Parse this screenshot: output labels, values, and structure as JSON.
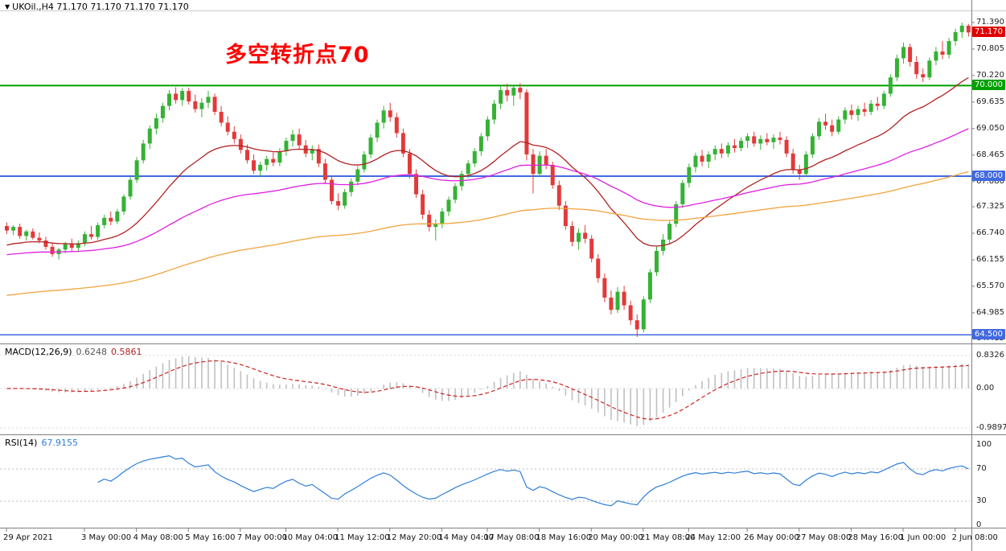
{
  "header": {
    "dropdown_icon": "▼",
    "symbol_info": "UKOil.,H4 71.170 71.170 71.170 71.170"
  },
  "annotation": {
    "text": "多空转折点70",
    "color": "#FF0000"
  },
  "colors": {
    "background": "#FFFFFF",
    "border": "#808080",
    "candle_up": "#35B235",
    "candle_down": "#E23A3A",
    "axis_text": "#222222"
  },
  "chart_data": {
    "type": "candlestick",
    "symbol": "UKOil.",
    "timeframe": "H4",
    "ohlc_order": [
      "open",
      "high",
      "low",
      "close"
    ],
    "candles": [
      [
        66.9,
        66.98,
        66.72,
        66.8
      ],
      [
        66.8,
        66.92,
        66.7,
        66.88
      ],
      [
        66.88,
        66.95,
        66.62,
        66.68
      ],
      [
        66.68,
        66.82,
        66.58,
        66.78
      ],
      [
        66.78,
        66.85,
        66.6,
        66.64
      ],
      [
        66.64,
        66.76,
        66.52,
        66.58
      ],
      [
        66.58,
        66.66,
        66.38,
        66.44
      ],
      [
        66.44,
        66.52,
        66.22,
        66.28
      ],
      [
        66.28,
        66.42,
        66.16,
        66.38
      ],
      [
        66.38,
        66.55,
        66.3,
        66.5
      ],
      [
        66.5,
        66.62,
        66.35,
        66.42
      ],
      [
        66.42,
        66.58,
        66.32,
        66.52
      ],
      [
        66.52,
        66.78,
        66.45,
        66.72
      ],
      [
        66.72,
        66.9,
        66.6,
        66.66
      ],
      [
        66.66,
        66.98,
        66.6,
        66.92
      ],
      [
        66.92,
        67.15,
        66.85,
        67.08
      ],
      [
        67.08,
        67.22,
        66.92,
        67.0
      ],
      [
        67.0,
        67.28,
        66.94,
        67.22
      ],
      [
        67.22,
        67.6,
        67.15,
        67.55
      ],
      [
        67.55,
        67.98,
        67.48,
        67.92
      ],
      [
        67.92,
        68.42,
        67.85,
        68.35
      ],
      [
        68.35,
        68.8,
        68.28,
        68.72
      ],
      [
        68.72,
        69.12,
        68.6,
        69.05
      ],
      [
        69.05,
        69.38,
        68.92,
        69.28
      ],
      [
        69.28,
        69.62,
        69.18,
        69.55
      ],
      [
        69.55,
        69.9,
        69.45,
        69.82
      ],
      [
        69.82,
        69.96,
        69.6,
        69.68
      ],
      [
        69.68,
        69.94,
        69.55,
        69.88
      ],
      [
        69.88,
        69.95,
        69.58,
        69.65
      ],
      [
        69.65,
        69.8,
        69.4,
        69.48
      ],
      [
        69.48,
        69.72,
        69.3,
        69.62
      ],
      [
        69.62,
        69.88,
        69.5,
        69.75
      ],
      [
        69.75,
        69.82,
        69.35,
        69.42
      ],
      [
        69.42,
        69.55,
        69.1,
        69.18
      ],
      [
        69.18,
        69.32,
        68.9,
        68.98
      ],
      [
        68.98,
        69.1,
        68.72,
        68.82
      ],
      [
        68.82,
        68.92,
        68.5,
        68.58
      ],
      [
        68.58,
        68.7,
        68.28,
        68.35
      ],
      [
        68.35,
        68.48,
        68.05,
        68.12
      ],
      [
        68.12,
        68.32,
        67.98,
        68.25
      ],
      [
        68.25,
        68.45,
        68.12,
        68.38
      ],
      [
        68.38,
        68.52,
        68.22,
        68.3
      ],
      [
        68.3,
        68.62,
        68.22,
        68.55
      ],
      [
        68.55,
        68.85,
        68.45,
        68.78
      ],
      [
        68.78,
        69.02,
        68.65,
        68.92
      ],
      [
        68.92,
        69.05,
        68.6,
        68.68
      ],
      [
        68.68,
        68.8,
        68.42,
        68.5
      ],
      [
        68.5,
        68.68,
        68.35,
        68.6
      ],
      [
        68.6,
        68.7,
        68.2,
        68.28
      ],
      [
        68.28,
        68.38,
        67.85,
        67.92
      ],
      [
        67.92,
        68.0,
        67.38,
        67.45
      ],
      [
        67.45,
        67.62,
        67.25,
        67.35
      ],
      [
        67.35,
        67.72,
        67.28,
        67.65
      ],
      [
        67.65,
        67.95,
        67.55,
        67.88
      ],
      [
        67.88,
        68.22,
        67.8,
        68.15
      ],
      [
        68.15,
        68.55,
        68.08,
        68.48
      ],
      [
        68.48,
        68.92,
        68.4,
        68.85
      ],
      [
        68.85,
        69.25,
        68.75,
        69.18
      ],
      [
        69.18,
        69.55,
        69.05,
        69.45
      ],
      [
        69.45,
        69.62,
        69.2,
        69.3
      ],
      [
        69.3,
        69.4,
        68.85,
        68.95
      ],
      [
        68.95,
        69.05,
        68.42,
        68.5
      ],
      [
        68.5,
        68.6,
        67.95,
        68.05
      ],
      [
        68.05,
        68.15,
        67.52,
        67.6
      ],
      [
        67.6,
        67.7,
        67.05,
        67.15
      ],
      [
        67.15,
        67.25,
        66.78,
        66.88
      ],
      [
        66.88,
        67.05,
        66.58,
        66.95
      ],
      [
        66.95,
        67.3,
        66.85,
        67.22
      ],
      [
        67.22,
        67.55,
        67.12,
        67.48
      ],
      [
        67.48,
        67.85,
        67.4,
        67.78
      ],
      [
        67.78,
        68.12,
        67.68,
        68.05
      ],
      [
        68.05,
        68.35,
        67.95,
        68.28
      ],
      [
        68.28,
        68.62,
        68.2,
        68.55
      ],
      [
        68.55,
        68.95,
        68.45,
        68.88
      ],
      [
        68.88,
        69.32,
        68.78,
        69.25
      ],
      [
        69.25,
        69.68,
        69.15,
        69.6
      ],
      [
        69.6,
        69.98,
        69.48,
        69.9
      ],
      [
        69.9,
        70.04,
        69.65,
        69.78
      ],
      [
        69.78,
        70.02,
        69.55,
        69.95
      ],
      [
        69.95,
        70.05,
        69.7,
        69.85
      ],
      [
        69.85,
        69.92,
        68.35,
        68.48
      ],
      [
        68.48,
        68.6,
        67.62,
        68.05
      ],
      [
        68.05,
        68.55,
        67.98,
        68.45
      ],
      [
        68.45,
        68.6,
        68.15,
        68.25
      ],
      [
        68.25,
        68.32,
        67.72,
        67.8
      ],
      [
        67.8,
        67.9,
        67.25,
        67.35
      ],
      [
        67.35,
        67.45,
        66.82,
        66.9
      ],
      [
        66.9,
        67.0,
        66.45,
        66.55
      ],
      [
        66.55,
        66.85,
        66.38,
        66.75
      ],
      [
        66.75,
        66.92,
        66.52,
        66.62
      ],
      [
        66.62,
        66.7,
        66.1,
        66.18
      ],
      [
        66.18,
        66.28,
        65.65,
        65.75
      ],
      [
        65.75,
        65.85,
        65.22,
        65.32
      ],
      [
        65.32,
        65.48,
        64.95,
        65.05
      ],
      [
        65.05,
        65.55,
        64.98,
        65.45
      ],
      [
        65.45,
        65.58,
        65.05,
        65.15
      ],
      [
        65.15,
        65.25,
        64.72,
        64.82
      ],
      [
        64.82,
        64.95,
        64.45,
        64.62
      ],
      [
        64.62,
        65.35,
        64.55,
        65.28
      ],
      [
        65.28,
        65.95,
        65.2,
        65.88
      ],
      [
        65.88,
        66.45,
        65.8,
        66.35
      ],
      [
        66.35,
        66.72,
        66.25,
        66.6
      ],
      [
        66.6,
        67.02,
        66.52,
        66.95
      ],
      [
        66.95,
        67.45,
        66.88,
        67.38
      ],
      [
        67.38,
        67.92,
        67.3,
        67.85
      ],
      [
        67.85,
        68.28,
        67.75,
        68.2
      ],
      [
        68.2,
        68.52,
        68.08,
        68.45
      ],
      [
        68.45,
        68.58,
        68.22,
        68.32
      ],
      [
        68.32,
        68.55,
        68.18,
        68.48
      ],
      [
        68.48,
        68.68,
        68.35,
        68.6
      ],
      [
        68.6,
        68.72,
        68.4,
        68.5
      ],
      [
        68.5,
        68.75,
        68.42,
        68.68
      ],
      [
        68.68,
        68.82,
        68.52,
        68.62
      ],
      [
        68.62,
        68.85,
        68.55,
        68.78
      ],
      [
        68.78,
        68.95,
        68.62,
        68.88
      ],
      [
        68.88,
        68.98,
        68.65,
        68.72
      ],
      [
        68.72,
        68.9,
        68.58,
        68.82
      ],
      [
        68.82,
        68.95,
        68.68,
        68.75
      ],
      [
        68.75,
        68.92,
        68.6,
        68.85
      ],
      [
        68.85,
        68.98,
        68.7,
        68.8
      ],
      [
        68.8,
        68.88,
        68.42,
        68.5
      ],
      [
        68.5,
        68.6,
        68.05,
        68.15
      ],
      [
        68.15,
        68.25,
        67.92,
        68.05
      ],
      [
        68.05,
        68.55,
        68.0,
        68.48
      ],
      [
        68.48,
        68.95,
        68.4,
        68.88
      ],
      [
        68.88,
        69.28,
        68.8,
        69.2
      ],
      [
        69.2,
        69.38,
        69.02,
        69.12
      ],
      [
        69.12,
        69.25,
        68.88,
        68.98
      ],
      [
        68.98,
        69.32,
        68.92,
        69.25
      ],
      [
        69.25,
        69.52,
        69.15,
        69.45
      ],
      [
        69.45,
        69.58,
        69.25,
        69.35
      ],
      [
        69.35,
        69.55,
        69.22,
        69.48
      ],
      [
        69.48,
        69.62,
        69.32,
        69.42
      ],
      [
        69.42,
        69.68,
        69.35,
        69.6
      ],
      [
        69.6,
        69.75,
        69.45,
        69.55
      ],
      [
        69.55,
        69.88,
        69.48,
        69.82
      ],
      [
        69.82,
        70.25,
        69.75,
        70.18
      ],
      [
        70.18,
        70.68,
        70.1,
        70.6
      ],
      [
        70.6,
        70.95,
        70.48,
        70.85
      ],
      [
        70.85,
        70.92,
        70.42,
        70.52
      ],
      [
        70.52,
        70.65,
        70.15,
        70.25
      ],
      [
        70.25,
        70.38,
        70.08,
        70.18
      ],
      [
        70.18,
        70.62,
        70.12,
        70.55
      ],
      [
        70.55,
        70.85,
        70.45,
        70.75
      ],
      [
        70.75,
        70.98,
        70.58,
        70.68
      ],
      [
        70.68,
        71.05,
        70.6,
        70.98
      ],
      [
        70.98,
        71.25,
        70.88,
        71.18
      ],
      [
        71.18,
        71.39,
        71.05,
        71.32
      ],
      [
        71.32,
        71.36,
        71.08,
        71.17
      ]
    ],
    "y_ticks": [
      {
        "v": 71.39,
        "label": "71.390"
      },
      {
        "v": 70.805,
        "label": "70.805"
      },
      {
        "v": 70.22,
        "label": "70.220"
      },
      {
        "v": 69.635,
        "label": "69.635"
      },
      {
        "v": 69.05,
        "label": "69.050"
      },
      {
        "v": 68.465,
        "label": "68.465"
      },
      {
        "v": 67.88,
        "label": "67.880"
      },
      {
        "v": 67.325,
        "label": "67.325"
      },
      {
        "v": 66.74,
        "label": "66.740"
      },
      {
        "v": 66.155,
        "label": "66.155"
      },
      {
        "v": 65.57,
        "label": "65.570"
      },
      {
        "v": 64.985,
        "label": "64.985"
      },
      {
        "v": 64.415,
        "label": "64.415"
      }
    ],
    "x_labels": [
      {
        "label": "29 Apr 2021",
        "i": 0
      },
      {
        "label": "3 May 00:00",
        "i": 12
      },
      {
        "label": "4 May 08:00",
        "i": 20
      },
      {
        "label": "5 May 16:00",
        "i": 28
      },
      {
        "label": "7 May 00:00",
        "i": 36
      },
      {
        "label": "10 May 04:00",
        "i": 43
      },
      {
        "label": "11 May 12:00",
        "i": 51
      },
      {
        "label": "12 May 20:00",
        "i": 59
      },
      {
        "label": "14 May 04:00",
        "i": 67
      },
      {
        "label": "17 May 08:00",
        "i": 74
      },
      {
        "label": "18 May 16:00",
        "i": 82
      },
      {
        "label": "20 May 00:00",
        "i": 90
      },
      {
        "label": "21 May 08:00",
        "i": 98
      },
      {
        "label": "24 May 12:00",
        "i": 105
      },
      {
        "label": "26 May 00:00",
        "i": 114
      },
      {
        "label": "27 May 08:00",
        "i": 122
      },
      {
        "label": "28 May 16:00",
        "i": 130
      },
      {
        "label": "1 Jun 00:00",
        "i": 138
      },
      {
        "label": "2 Jun 08:00",
        "i": 146
      }
    ],
    "hlines": [
      {
        "value": 70.0,
        "label": "70.000",
        "color": "#00A000",
        "width": 2
      },
      {
        "value": 68.0,
        "label": "68.000",
        "color": "#4169E1",
        "width": 2
      },
      {
        "value": 64.5,
        "label": "64.500",
        "color": "#4169E1",
        "width": 1.5
      }
    ],
    "current_price": {
      "value": 71.17,
      "label": "71.170",
      "color": "#E00000"
    },
    "moving_averages": [
      {
        "name": "ma-fast",
        "period": 24,
        "seed": 66.45,
        "color": "#B22222"
      },
      {
        "name": "ma-mid",
        "period": 70,
        "seed": 66.25,
        "color": "#E020E0"
      },
      {
        "name": "ma-slow",
        "period": 160,
        "seed": 65.35,
        "color": "#F2A33C"
      }
    ],
    "macd": {
      "name_label": "MACD(12,26,9)",
      "value_main": "0.6248",
      "value_signal": "0.5861",
      "fast": 12,
      "slow": 26,
      "signal": 9,
      "ticks": [
        {
          "v": 0.8326,
          "label": "0.8326"
        },
        {
          "v": 0,
          "label": "0.00"
        },
        {
          "v": -0.9897,
          "label": "-0.9897"
        }
      ],
      "range": [
        -1.05,
        0.95
      ],
      "hist_color": "#C0C0C0",
      "signal_color": "#CC2222",
      "label_main_color": "#555555",
      "label_signal_color": "#B22222"
    },
    "rsi": {
      "name_label": "RSI(14)",
      "value": "67.9155",
      "period": 14,
      "ticks": [
        {
          "v": 100,
          "label": "100"
        },
        {
          "v": 70,
          "label": "70"
        },
        {
          "v": 30,
          "label": "30"
        },
        {
          "v": 0,
          "label": "0"
        }
      ],
      "levels": [
        70,
        30
      ],
      "color": "#2F7ED8",
      "range": [
        0,
        100
      ]
    }
  }
}
